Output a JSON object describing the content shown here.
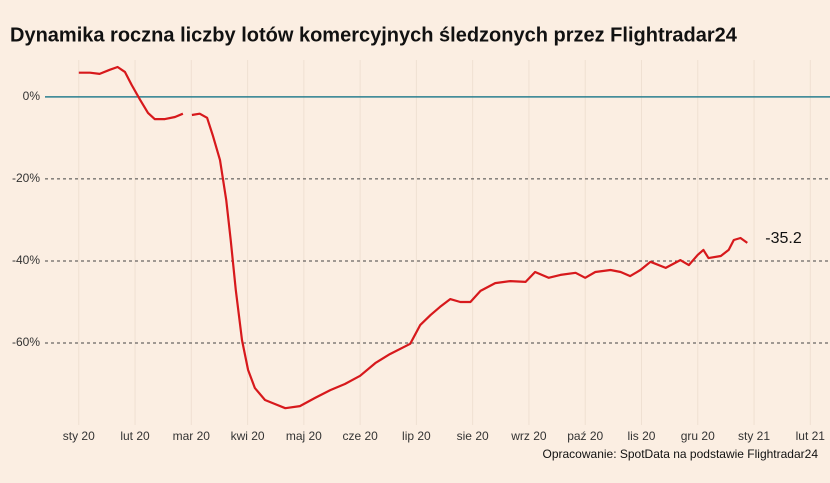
{
  "chart_data": {
    "type": "line",
    "title": "Dynamika roczna liczby lotów komercyjnych śledzonych przez Flightradar24",
    "source": "Opracowanie: SpotData na podstawie Flightradar24",
    "annotation": "-35.2",
    "x": [
      0,
      0.2,
      0.37,
      0.55,
      0.69,
      0.82,
      0.94,
      1.09,
      1.23,
      1.35,
      1.53,
      1.71,
      1.85,
      1.94,
      2.01,
      2.15,
      2.28,
      2.38,
      2.51,
      2.62,
      2.7,
      2.79,
      2.9,
      3.01,
      3.13,
      3.31,
      3.49,
      3.67,
      3.93,
      4.2,
      4.47,
      4.73,
      5.0,
      5.27,
      5.53,
      5.89,
      6.07,
      6.25,
      6.42,
      6.6,
      6.78,
      6.96,
      7.14,
      7.4,
      7.67,
      7.94,
      8.11,
      8.35,
      8.56,
      8.83,
      9.0,
      9.18,
      9.45,
      9.63,
      9.8,
      9.98,
      10.16,
      10.43,
      10.69,
      10.84,
      11.0,
      11.1,
      11.19,
      11.41,
      11.55,
      11.64,
      11.76,
      11.88
    ],
    "series": [
      {
        "name": "Dynamika roczna",
        "color": "#d7191c",
        "values": [
          5.9,
          5.9,
          5.6,
          6.6,
          7.3,
          6.1,
          2.9,
          -0.7,
          -3.9,
          -5.4,
          -5.4,
          -4.9,
          -4.1,
          null,
          -4.4,
          -4.1,
          -5.1,
          -9.3,
          -15.4,
          -25.1,
          -34.9,
          -47.1,
          -59.3,
          -66.6,
          -71,
          -73.9,
          -74.9,
          -75.9,
          -75.4,
          -73.4,
          -71.5,
          -70,
          -68,
          -64.9,
          -62.7,
          -60.2,
          -55.6,
          -53.2,
          -51.2,
          -49.3,
          -50,
          -50,
          -47.3,
          -45.4,
          -44.9,
          -45.1,
          -42.7,
          -44.1,
          -43.4,
          -42.9,
          -44.1,
          -42.7,
          -42.2,
          -42.7,
          -43.7,
          -42.2,
          -40.2,
          -41.7,
          -39.8,
          -41,
          -38.5,
          -37.3,
          -39.3,
          -38.8,
          -37.3,
          -34.9,
          -34.4,
          -35.6
        ]
      }
    ],
    "xlim": [
      -0.6,
      13.35
    ],
    "xticks": [
      {
        "value": 0,
        "label": "sty 20"
      },
      {
        "value": 1,
        "label": "lut 20"
      },
      {
        "value": 2,
        "label": "mar 20"
      },
      {
        "value": 3,
        "label": "kwi 20"
      },
      {
        "value": 4,
        "label": "maj 20"
      },
      {
        "value": 5,
        "label": "cze 20"
      },
      {
        "value": 6,
        "label": "lip 20"
      },
      {
        "value": 7,
        "label": "sie 20"
      },
      {
        "value": 8,
        "label": "wrz 20"
      },
      {
        "value": 9,
        "label": "paź 20"
      },
      {
        "value": 10,
        "label": "lis 20"
      },
      {
        "value": 11,
        "label": "gru 20"
      },
      {
        "value": 12,
        "label": "sty 21"
      },
      {
        "value": 13,
        "label": "lut 21"
      }
    ],
    "ylim": [
      -80,
      9
    ],
    "yticks": [
      {
        "value": -60,
        "label": "-60%"
      },
      {
        "value": -40,
        "label": "-40%"
      },
      {
        "value": -20,
        "label": "-20%"
      },
      {
        "value": 0,
        "label": "0%"
      }
    ],
    "grid": true,
    "zero_line_color": "#2a7f8f"
  }
}
